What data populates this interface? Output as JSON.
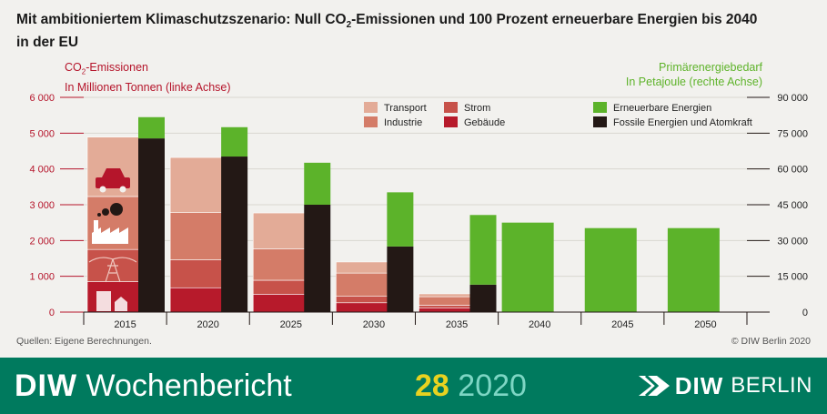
{
  "title_line1_pre": "Mit ambitioniertem Klimaschutzszenario: Null CO",
  "title_line1_sub": "2",
  "title_line1_post": "-Emissionen und 100 Prozent erneuerbare Energien bis 2040",
  "title_line2": "in der EU",
  "left_header": {
    "line1_pre": "CO",
    "line1_sub": "2",
    "line1_post": "-Emissionen",
    "line2": "In Millionen Tonnen (linke Achse)"
  },
  "right_header": {
    "line1": "Primärenergiebedarf",
    "line2": "In Petajoule (rechte Achse)"
  },
  "source": "Quellen: Eigene Berechnungen.",
  "copyright": "© DIW Berlin 2020",
  "footer": {
    "brand_bold": "DIW",
    "brand_rest": "Wochenbericht",
    "issue_number": "28",
    "issue_year": "2020",
    "logo_diw": "DIW",
    "logo_berlin": "BERLIN"
  },
  "colors": {
    "transport": "#e3ab97",
    "industrie": "#d47c68",
    "strom": "#c7524a",
    "gebaeude": "#b71a2b",
    "erneuerbar": "#5cb32a",
    "fossil": "#231815"
  },
  "chart_data": {
    "type": "bar",
    "categories": [
      "2015",
      "2020",
      "2025",
      "2030",
      "2035",
      "2040",
      "2045",
      "2050"
    ],
    "left_axis": {
      "ylim": [
        0,
        6000
      ],
      "ticks": [
        0,
        1000,
        2000,
        3000,
        4000,
        5000,
        6000
      ],
      "tick_labels": [
        "0",
        "1 000",
        "2 000",
        "3 000",
        "4 000",
        "5 000",
        "6 000"
      ]
    },
    "right_axis": {
      "ylim": [
        0,
        90000
      ],
      "ticks": [
        0,
        15000,
        30000,
        45000,
        60000,
        75000,
        90000
      ],
      "tick_labels": [
        "0",
        "15 000",
        "30 000",
        "45 000",
        "60 000",
        "75 000",
        "90 000"
      ]
    },
    "co2_series": [
      {
        "name": "Gebäude",
        "key": "gebaeude",
        "values": [
          850,
          680,
          500,
          260,
          120,
          0,
          0,
          0
        ]
      },
      {
        "name": "Strom",
        "key": "strom",
        "values": [
          900,
          780,
          390,
          180,
          70,
          0,
          0,
          0
        ]
      },
      {
        "name": "Industrie",
        "key": "industrie",
        "values": [
          1480,
          1320,
          880,
          650,
          240,
          0,
          0,
          0
        ]
      },
      {
        "name": "Transport",
        "key": "transport",
        "values": [
          1660,
          1540,
          1000,
          310,
          80,
          0,
          0,
          0
        ]
      }
    ],
    "energy_series": [
      {
        "name": "Fossile Energien und Atomkraft",
        "key": "fossil",
        "values": [
          72800,
          65200,
          45000,
          27500,
          11500,
          0,
          0,
          0
        ]
      },
      {
        "name": "Erneuerbare Energien",
        "key": "erneuerbar",
        "values": [
          8900,
          12300,
          17600,
          22700,
          29200,
          37500,
          35200,
          35200
        ]
      }
    ],
    "legend": [
      {
        "label": "Transport",
        "key": "transport"
      },
      {
        "label": "Industrie",
        "key": "industrie"
      },
      {
        "label": "Strom",
        "key": "strom"
      },
      {
        "label": "Gebäude",
        "key": "gebaeude"
      },
      {
        "label": "Erneuerbare Energien",
        "key": "erneuerbar"
      },
      {
        "label": "Fossile Energien und Atomkraft",
        "key": "fossil"
      }
    ],
    "grid": true
  }
}
